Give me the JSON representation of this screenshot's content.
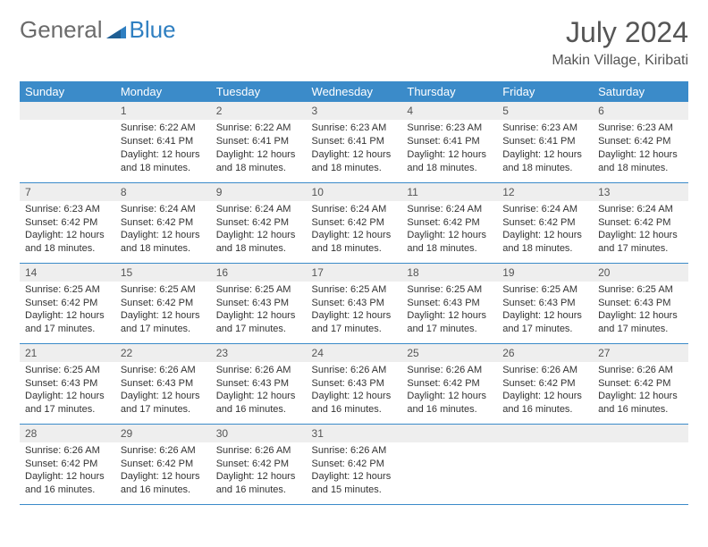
{
  "brand": {
    "part1": "General",
    "part2": "Blue"
  },
  "title": "July 2024",
  "location": "Makin Village, Kiribati",
  "columns": [
    "Sunday",
    "Monday",
    "Tuesday",
    "Wednesday",
    "Thursday",
    "Friday",
    "Saturday"
  ],
  "colors": {
    "header_bg": "#3b8bc9",
    "header_fg": "#ffffff",
    "daynum_bg": "#eeeeee",
    "text": "#333333",
    "brand_grey": "#6b6b6b",
    "brand_blue": "#2f7fc1",
    "rule": "#3b8bc9"
  },
  "typography": {
    "title_fontsize": 32,
    "location_fontsize": 16,
    "header_fontsize": 13,
    "daynum_fontsize": 12,
    "body_fontsize": 11
  },
  "layout": {
    "first_weekday_index": 1,
    "cols": 7,
    "rows": 5
  },
  "days": [
    {
      "n": 1,
      "sunrise": "6:22 AM",
      "sunset": "6:41 PM",
      "daylight": "12 hours and 18 minutes."
    },
    {
      "n": 2,
      "sunrise": "6:22 AM",
      "sunset": "6:41 PM",
      "daylight": "12 hours and 18 minutes."
    },
    {
      "n": 3,
      "sunrise": "6:23 AM",
      "sunset": "6:41 PM",
      "daylight": "12 hours and 18 minutes."
    },
    {
      "n": 4,
      "sunrise": "6:23 AM",
      "sunset": "6:41 PM",
      "daylight": "12 hours and 18 minutes."
    },
    {
      "n": 5,
      "sunrise": "6:23 AM",
      "sunset": "6:41 PM",
      "daylight": "12 hours and 18 minutes."
    },
    {
      "n": 6,
      "sunrise": "6:23 AM",
      "sunset": "6:42 PM",
      "daylight": "12 hours and 18 minutes."
    },
    {
      "n": 7,
      "sunrise": "6:23 AM",
      "sunset": "6:42 PM",
      "daylight": "12 hours and 18 minutes."
    },
    {
      "n": 8,
      "sunrise": "6:24 AM",
      "sunset": "6:42 PM",
      "daylight": "12 hours and 18 minutes."
    },
    {
      "n": 9,
      "sunrise": "6:24 AM",
      "sunset": "6:42 PM",
      "daylight": "12 hours and 18 minutes."
    },
    {
      "n": 10,
      "sunrise": "6:24 AM",
      "sunset": "6:42 PM",
      "daylight": "12 hours and 18 minutes."
    },
    {
      "n": 11,
      "sunrise": "6:24 AM",
      "sunset": "6:42 PM",
      "daylight": "12 hours and 18 minutes."
    },
    {
      "n": 12,
      "sunrise": "6:24 AM",
      "sunset": "6:42 PM",
      "daylight": "12 hours and 18 minutes."
    },
    {
      "n": 13,
      "sunrise": "6:24 AM",
      "sunset": "6:42 PM",
      "daylight": "12 hours and 17 minutes."
    },
    {
      "n": 14,
      "sunrise": "6:25 AM",
      "sunset": "6:42 PM",
      "daylight": "12 hours and 17 minutes."
    },
    {
      "n": 15,
      "sunrise": "6:25 AM",
      "sunset": "6:42 PM",
      "daylight": "12 hours and 17 minutes."
    },
    {
      "n": 16,
      "sunrise": "6:25 AM",
      "sunset": "6:43 PM",
      "daylight": "12 hours and 17 minutes."
    },
    {
      "n": 17,
      "sunrise": "6:25 AM",
      "sunset": "6:43 PM",
      "daylight": "12 hours and 17 minutes."
    },
    {
      "n": 18,
      "sunrise": "6:25 AM",
      "sunset": "6:43 PM",
      "daylight": "12 hours and 17 minutes."
    },
    {
      "n": 19,
      "sunrise": "6:25 AM",
      "sunset": "6:43 PM",
      "daylight": "12 hours and 17 minutes."
    },
    {
      "n": 20,
      "sunrise": "6:25 AM",
      "sunset": "6:43 PM",
      "daylight": "12 hours and 17 minutes."
    },
    {
      "n": 21,
      "sunrise": "6:25 AM",
      "sunset": "6:43 PM",
      "daylight": "12 hours and 17 minutes."
    },
    {
      "n": 22,
      "sunrise": "6:26 AM",
      "sunset": "6:43 PM",
      "daylight": "12 hours and 17 minutes."
    },
    {
      "n": 23,
      "sunrise": "6:26 AM",
      "sunset": "6:43 PM",
      "daylight": "12 hours and 16 minutes."
    },
    {
      "n": 24,
      "sunrise": "6:26 AM",
      "sunset": "6:43 PM",
      "daylight": "12 hours and 16 minutes."
    },
    {
      "n": 25,
      "sunrise": "6:26 AM",
      "sunset": "6:42 PM",
      "daylight": "12 hours and 16 minutes."
    },
    {
      "n": 26,
      "sunrise": "6:26 AM",
      "sunset": "6:42 PM",
      "daylight": "12 hours and 16 minutes."
    },
    {
      "n": 27,
      "sunrise": "6:26 AM",
      "sunset": "6:42 PM",
      "daylight": "12 hours and 16 minutes."
    },
    {
      "n": 28,
      "sunrise": "6:26 AM",
      "sunset": "6:42 PM",
      "daylight": "12 hours and 16 minutes."
    },
    {
      "n": 29,
      "sunrise": "6:26 AM",
      "sunset": "6:42 PM",
      "daylight": "12 hours and 16 minutes."
    },
    {
      "n": 30,
      "sunrise": "6:26 AM",
      "sunset": "6:42 PM",
      "daylight": "12 hours and 16 minutes."
    },
    {
      "n": 31,
      "sunrise": "6:26 AM",
      "sunset": "6:42 PM",
      "daylight": "12 hours and 15 minutes."
    }
  ],
  "labels": {
    "sunrise": "Sunrise:",
    "sunset": "Sunset:",
    "daylight": "Daylight:"
  }
}
